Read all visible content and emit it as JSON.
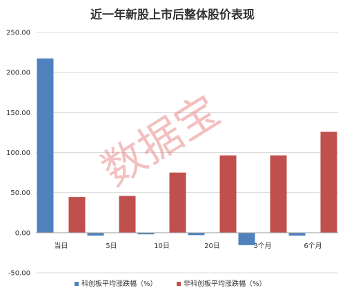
{
  "watermark": "数据宝",
  "chart_data": {
    "type": "bar",
    "title": "近一年新股上市后整体股价表现",
    "categories": [
      "当日",
      "5日",
      "10日",
      "20日",
      "3个月",
      "6个月"
    ],
    "series": [
      {
        "name": "科创板平均涨跌幅（%）",
        "color": "#4f81bd",
        "values": [
          217.5,
          -3.5,
          -2.0,
          -3.0,
          -15.5,
          -3.5
        ]
      },
      {
        "name": "非科创板平均涨跌幅（%）",
        "color": "#c0504d",
        "values": [
          44.5,
          46.0,
          75.0,
          96.5,
          96.5,
          126.0
        ]
      }
    ],
    "ylim": [
      -50,
      250
    ],
    "yticks": [
      "250.00",
      "200.00",
      "150.00",
      "100.00",
      "50.00",
      "0.00",
      "-50.00"
    ],
    "ytick_values": [
      250,
      200,
      150,
      100,
      50,
      0,
      -50
    ],
    "grid": true,
    "legend_position": "bottom"
  }
}
